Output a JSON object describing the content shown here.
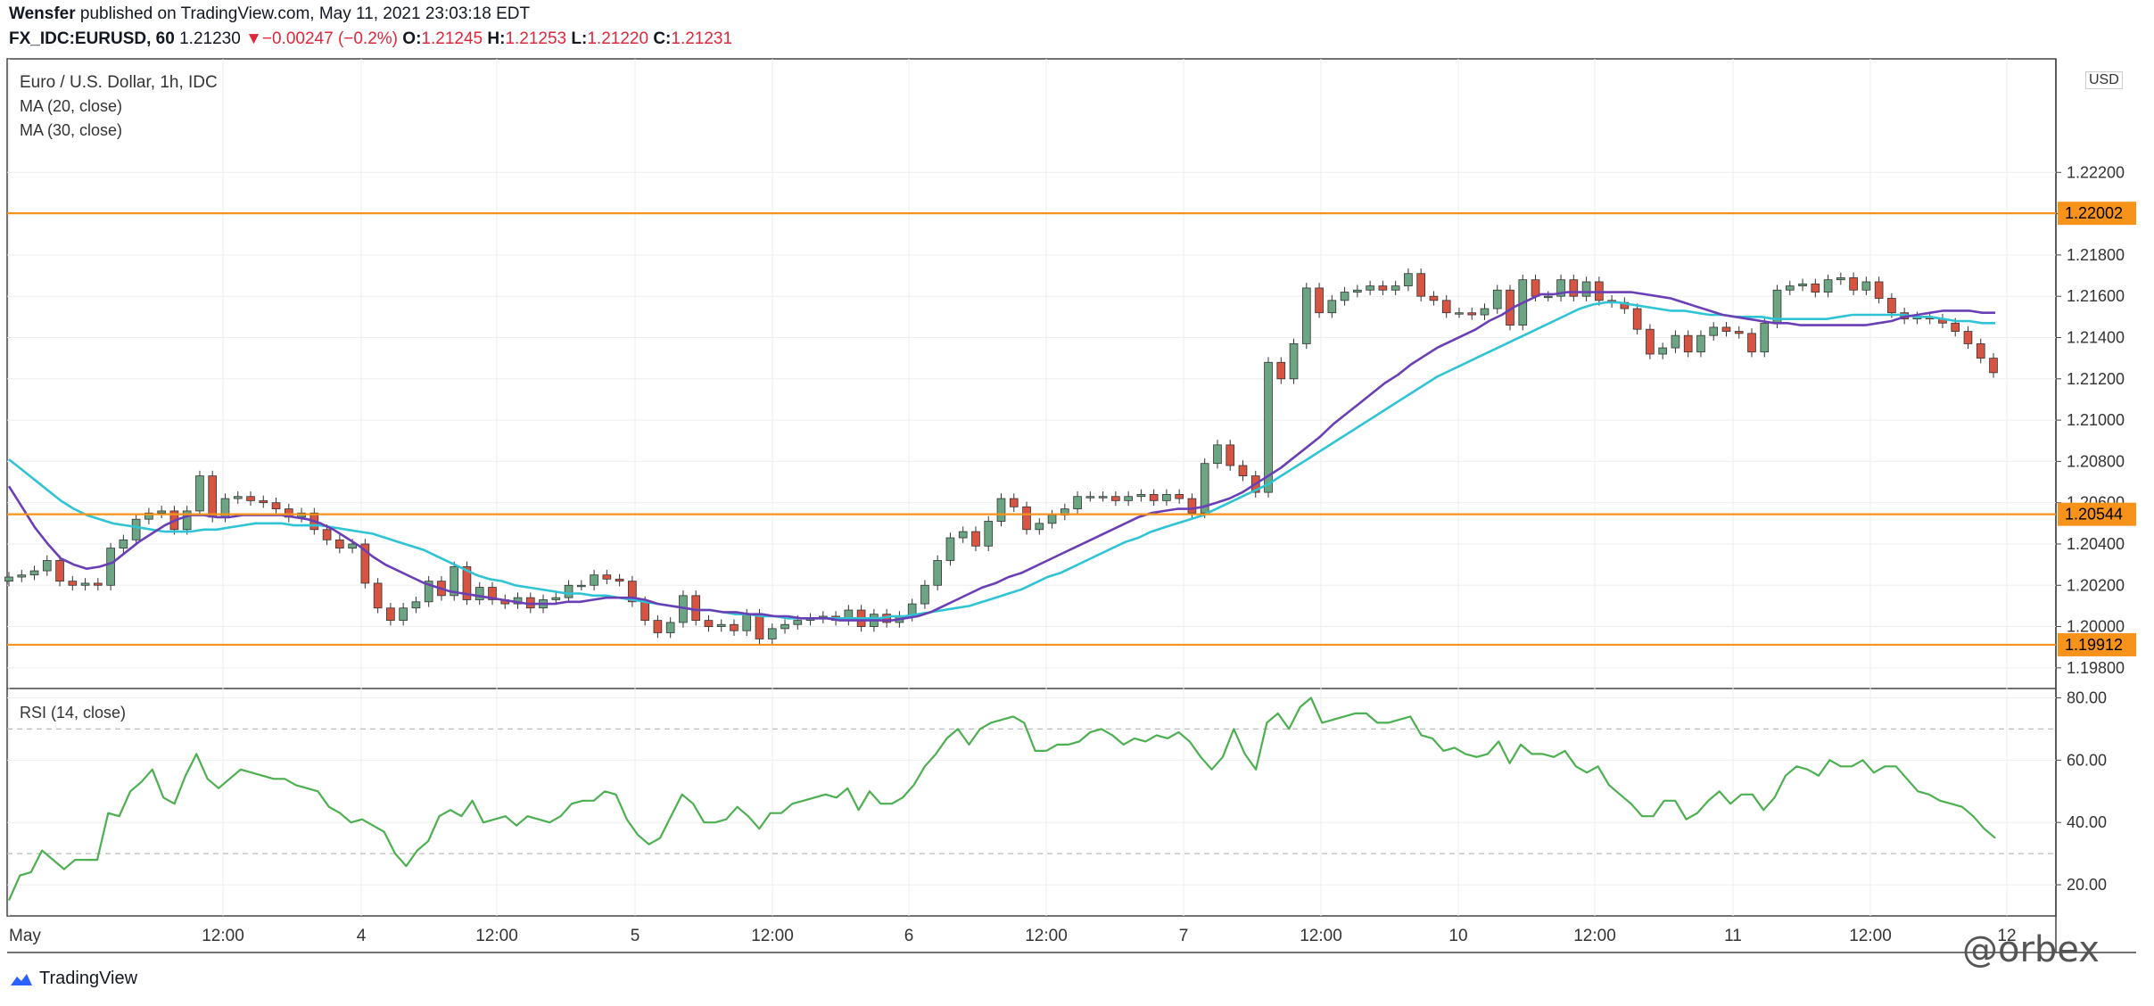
{
  "header": {
    "author": "Wensfer",
    "published": "published on TradingView.com, May 11, 2021 23:03:18 EDT",
    "symbol": "FX_IDC:EURUSD, 60",
    "last": "1.21230",
    "change": "−0.00247 (−0.2%)",
    "o_label": "O:",
    "o": "1.21245",
    "h_label": "H:",
    "h": "1.21253",
    "l_label": "L:",
    "l": "1.21220",
    "c_label": "C:",
    "c": "1.21231"
  },
  "legend": {
    "title": "Euro / U.S. Dollar, 1h, IDC",
    "ma20": "MA (20, close)",
    "ma30": "MA (30, close)",
    "rsi": "RSI (14, close)",
    "currency": "USD"
  },
  "footer": {
    "brand": "TradingView"
  },
  "watermark": "@orbex",
  "colors": {
    "up": "#6ba583",
    "down": "#d75442",
    "ma20": "#6a3fb5",
    "ma30": "#2ec4d6",
    "level": "#f7931a",
    "rsi": "#4caf50",
    "grid": "#eeeeee"
  },
  "chart_data": [
    {
      "type": "candlestick",
      "title": "Euro / U.S. Dollar, 1h, IDC",
      "ylim": [
        1.197,
        1.2275
      ],
      "y_ticks": [
        "1.19800",
        "1.20000",
        "1.20200",
        "1.20400",
        "1.20600",
        "1.20800",
        "1.21000",
        "1.21200",
        "1.21400",
        "1.21600",
        "1.21800",
        "1.22000",
        "1.22200"
      ],
      "x_ticks": [
        "May",
        "12:00",
        "4",
        "12:00",
        "5",
        "12:00",
        "6",
        "12:00",
        "7",
        "12:00",
        "10",
        "12:00",
        "11",
        "12:00",
        "12"
      ],
      "levels": [
        {
          "label": "1.22002",
          "value": 1.22002
        },
        {
          "label": "1.20544",
          "value": 1.20544
        },
        {
          "label": "1.19912",
          "value": 1.19912
        }
      ],
      "close": [
        1.2024,
        1.2025,
        1.2027,
        1.2032,
        1.2022,
        1.202,
        1.2021,
        1.202,
        1.2038,
        1.2042,
        1.2052,
        1.2055,
        1.2056,
        1.2047,
        1.2056,
        1.2073,
        1.2053,
        1.2062,
        1.2063,
        1.2061,
        1.206,
        1.2057,
        1.2053,
        1.2055,
        1.2047,
        1.2042,
        1.2038,
        1.204,
        1.2021,
        1.2009,
        1.2003,
        1.2009,
        1.2012,
        1.2022,
        1.2015,
        1.2029,
        1.2013,
        1.2019,
        1.2013,
        1.2011,
        1.2014,
        1.2009,
        1.2013,
        1.2014,
        1.202,
        1.202,
        1.2025,
        1.2023,
        1.2022,
        1.2012,
        1.2003,
        1.1997,
        1.2002,
        1.2015,
        1.2003,
        1.2,
        1.2001,
        1.1998,
        1.2006,
        1.1994,
        1.1999,
        1.2001,
        1.2003,
        1.2004,
        1.2005,
        1.2003,
        1.2008,
        1.2,
        1.2006,
        1.2002,
        1.2005,
        1.2011,
        1.202,
        1.2032,
        1.2043,
        1.2046,
        1.2039,
        1.2051,
        1.2062,
        1.2058,
        1.2047,
        1.205,
        1.2054,
        1.2057,
        1.2063,
        1.2063,
        1.2063,
        1.2061,
        1.2063,
        1.2064,
        1.2061,
        1.2064,
        1.2062,
        1.2055,
        1.2079,
        1.2088,
        1.2078,
        1.2073,
        1.2065,
        1.2128,
        1.212,
        1.2137,
        1.2164,
        1.2152,
        1.2158,
        1.2162,
        1.2163,
        1.2165,
        1.2163,
        1.2165,
        1.2171,
        1.216,
        1.2158,
        1.2152,
        1.2152,
        1.2151,
        1.2154,
        1.2163,
        1.2146,
        1.2168,
        1.216,
        1.216,
        1.2168,
        1.216,
        1.2167,
        1.2158,
        1.2157,
        1.2154,
        1.2144,
        1.2132,
        1.2135,
        1.2141,
        1.2133,
        1.2141,
        1.2145,
        1.2143,
        1.2142,
        1.2133,
        1.2147,
        1.2163,
        1.2165,
        1.2166,
        1.2162,
        1.2168,
        1.2169,
        1.2163,
        1.2167,
        1.2159,
        1.2152,
        1.2149,
        1.215,
        1.2149,
        1.2147,
        1.2143,
        1.2137,
        1.213,
        1.2123
      ],
      "ma20": [
        1.2068,
        1.2058,
        1.2048,
        1.204,
        1.2033,
        1.203,
        1.2028,
        1.2029,
        1.2031,
        1.2036,
        1.2041,
        1.2045,
        1.2049,
        1.2052,
        1.2054,
        1.2054,
        1.2053,
        1.2053,
        1.2054,
        1.2054,
        1.2054,
        1.2054,
        1.2053,
        1.2052,
        1.205,
        1.2047,
        1.2043,
        1.2039,
        1.2034,
        1.203,
        1.2027,
        1.2024,
        1.2021,
        1.2019,
        1.2017,
        1.2016,
        1.2015,
        1.2014,
        1.2013,
        1.2012,
        1.2011,
        1.2011,
        1.2011,
        1.2012,
        1.2012,
        1.2013,
        1.2014,
        1.2014,
        1.2014,
        1.2013,
        1.2011,
        1.201,
        1.2009,
        1.2008,
        1.2008,
        1.2007,
        1.2007,
        1.2006,
        1.2006,
        1.2005,
        1.2005,
        1.2004,
        1.2004,
        1.2004,
        1.2003,
        1.2003,
        1.2003,
        1.2003,
        1.2003,
        1.2004,
        1.2005,
        1.2007,
        1.201,
        1.2013,
        1.2016,
        1.2019,
        1.2021,
        1.2024,
        1.2026,
        1.2029,
        1.2032,
        1.2035,
        1.2038,
        1.2041,
        1.2044,
        1.2047,
        1.205,
        1.2053,
        1.2055,
        1.2056,
        1.2057,
        1.2057,
        1.2058,
        1.206,
        1.2062,
        1.2065,
        1.2069,
        1.2073,
        1.2077,
        1.2082,
        1.2087,
        1.2092,
        1.2098,
        1.2103,
        1.2108,
        1.2113,
        1.2118,
        1.2122,
        1.2127,
        1.2131,
        1.2135,
        1.2138,
        1.2141,
        1.2144,
        1.2148,
        1.2151,
        1.2155,
        1.2158,
        1.2161,
        1.2161,
        1.2162,
        1.2162,
        1.2162,
        1.2162,
        1.2162,
        1.2162,
        1.2161,
        1.216,
        1.2159,
        1.2157,
        1.2155,
        1.2153,
        1.2151,
        1.215,
        1.2149,
        1.2148,
        1.2147,
        1.2147,
        1.2146,
        1.2146,
        1.2146,
        1.2146,
        1.2146,
        1.2146,
        1.2147,
        1.2148,
        1.215,
        1.2151,
        1.2152,
        1.2153,
        1.2153,
        1.2153,
        1.2152,
        1.2152
      ],
      "ma30": [
        1.2081,
        1.2076,
        1.2071,
        1.2066,
        1.2061,
        1.2057,
        1.2054,
        1.2052,
        1.205,
        1.2049,
        1.2048,
        1.2047,
        1.2046,
        1.2046,
        1.2046,
        1.2047,
        1.2047,
        1.2048,
        1.2049,
        1.205,
        1.205,
        1.205,
        1.2049,
        1.2049,
        1.2049,
        1.2048,
        1.2047,
        1.2046,
        1.2045,
        1.2043,
        1.2041,
        1.2039,
        1.2037,
        1.2034,
        1.2031,
        1.2028,
        1.2025,
        1.2023,
        1.2022,
        1.202,
        1.2019,
        1.2018,
        1.2017,
        1.2016,
        1.2016,
        1.2015,
        1.2015,
        1.2014,
        1.2013,
        1.2012,
        1.2011,
        1.201,
        1.2009,
        1.2008,
        1.2008,
        1.2007,
        1.2006,
        1.2006,
        1.2005,
        1.2005,
        1.2004,
        1.2004,
        1.2004,
        1.2004,
        1.2004,
        1.2004,
        1.2004,
        1.2004,
        1.2005,
        1.2005,
        1.2006,
        1.2007,
        1.2008,
        1.2009,
        1.201,
        1.2012,
        1.2014,
        1.2016,
        1.2018,
        1.2021,
        1.2024,
        1.2026,
        1.2029,
        1.2032,
        1.2035,
        1.2038,
        1.2041,
        1.2043,
        1.2046,
        1.2048,
        1.205,
        1.2052,
        1.2054,
        1.2057,
        1.206,
        1.2063,
        1.2066,
        1.2069,
        1.2073,
        1.2077,
        1.2081,
        1.2085,
        1.2089,
        1.2093,
        1.2097,
        1.2101,
        1.2105,
        1.2109,
        1.2113,
        1.2117,
        1.2121,
        1.2124,
        1.2127,
        1.213,
        1.2133,
        1.2136,
        1.2139,
        1.2142,
        1.2145,
        1.2148,
        1.2151,
        1.2154,
        1.2156,
        1.2157,
        1.2157,
        1.2156,
        1.2155,
        1.2154,
        1.2153,
        1.2153,
        1.2152,
        1.2151,
        1.2151,
        1.215,
        1.215,
        1.215,
        1.2149,
        1.2149,
        1.2149,
        1.2149,
        1.2149,
        1.215,
        1.2151,
        1.2151,
        1.2151,
        1.2151,
        1.2151,
        1.215,
        1.215,
        1.2149,
        1.2148,
        1.2148,
        1.2147,
        1.2147
      ]
    },
    {
      "type": "line",
      "title": "RSI (14, close)",
      "ylim": [
        10,
        83
      ],
      "y_ticks": [
        "20.00",
        "40.00",
        "60.00",
        "80.00"
      ],
      "bands": [
        30,
        70
      ],
      "values": [
        15,
        23,
        24,
        31,
        28,
        25,
        28,
        28,
        28,
        43,
        42,
        50,
        53,
        57,
        48,
        46,
        55,
        62,
        54,
        51,
        54,
        57,
        56,
        55,
        54,
        54,
        52,
        51,
        50,
        45,
        43,
        40,
        41,
        39,
        37,
        30,
        26,
        31,
        34,
        42,
        44,
        42,
        47,
        40,
        41,
        42,
        39,
        42,
        41,
        40,
        42,
        46,
        47,
        47,
        50,
        49,
        41,
        36,
        33,
        35,
        42,
        49,
        46,
        40,
        40,
        41,
        45,
        42,
        38,
        43,
        43,
        46,
        47,
        48,
        49,
        48,
        51,
        44,
        50,
        46,
        46,
        48,
        52,
        58,
        62,
        67,
        70,
        65,
        70,
        72,
        73,
        74,
        72,
        63,
        63,
        65,
        65,
        66,
        69,
        70,
        68,
        65,
        67,
        66,
        68,
        67,
        69,
        66,
        61,
        57,
        61,
        70,
        62,
        57,
        72,
        75,
        70,
        77,
        80,
        72,
        73,
        74,
        75,
        75,
        72,
        72,
        73,
        74,
        68,
        67,
        63,
        64,
        62,
        61,
        62,
        66,
        59,
        65,
        62,
        62,
        61,
        63,
        58,
        56,
        58,
        52,
        49,
        46,
        42,
        42,
        47,
        47,
        41,
        43,
        47,
        50,
        46,
        49,
        49,
        44,
        48,
        55,
        58,
        57,
        55,
        60,
        58,
        58,
        60,
        56,
        58,
        58,
        54,
        50,
        49,
        47,
        46,
        45,
        42,
        38,
        35
      ]
    }
  ]
}
